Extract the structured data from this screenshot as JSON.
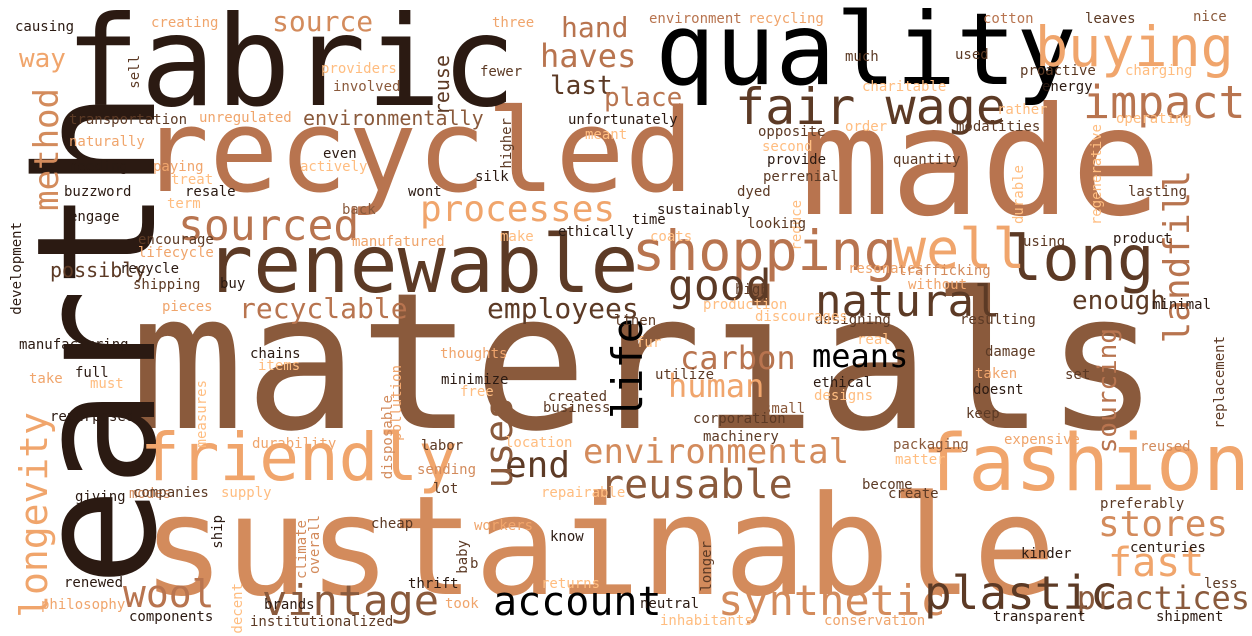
{
  "palette": {
    "darkest": "#2b1a12",
    "dark": "#5c3a25",
    "brown": "#8a5a3c",
    "mid": "#b8744f",
    "tan": "#d38b5c",
    "light": "#f0a56c",
    "pale": "#ffbd80",
    "black": "#000000"
  },
  "words": {
    "materials": "materials",
    "sustainable": "sustainable",
    "made": "made",
    "recycled": "recycled",
    "earth": "earth",
    "fabric": "fabric",
    "quality": "quality",
    "renewable": "renewable",
    "fashion": "fashion",
    "friendly": "friendly",
    "buying": "buying",
    "shopping": "shopping",
    "long": "long",
    "well": "well",
    "fair_wage": "fair wage",
    "impact": "impact",
    "natural": "natural",
    "sourced": "sourced",
    "processes": "processes",
    "method": "method",
    "landfill": "landfill",
    "good": "good",
    "means": "means",
    "haves": "haves",
    "hand": "hand",
    "source": "source",
    "environmental": "environmental",
    "reusable": "reusable",
    "vintage": "vintage",
    "account": "account",
    "synthetic": "synthetic",
    "plastic": "plastic",
    "practices": "practices",
    "fast": "fast",
    "stores": "stores",
    "wool": "wool",
    "end": "end",
    "life": "life",
    "uses": "uses",
    "human": "human",
    "carbon": "carbon",
    "employees": "employees",
    "recyclable": "recyclable",
    "longevity": "longevity",
    "enough": "enough",
    "sourcing": "sourcing",
    "last": "last",
    "place": "place",
    "way": "way",
    "reuse": "reuse",
    "environmentally": "environmentally",
    "possibly": "possibly",
    "causing": "causing",
    "creating": "creating",
    "three": "three",
    "environment": "environment",
    "recycling": "recycling",
    "cotton": "cotton",
    "leaves": "leaves",
    "nice": "nice",
    "sell": "sell",
    "providers": "providers",
    "fewer": "fewer",
    "much": "much",
    "used": "used",
    "proactive": "proactive",
    "charging": "charging",
    "involved": "involved",
    "charitable": "charitable",
    "energy": "energy",
    "transportation": "transportation",
    "unregulated": "unregulated",
    "unfortunately": "unfortunately",
    "rather": "rather",
    "operating": "operating",
    "naturally": "naturally",
    "meant": "meant",
    "order": "order",
    "modalities": "modalities",
    "opposite": "opposite",
    "higher": "higher",
    "second": "second",
    "needing": "needing",
    "paying": "paying",
    "even": "even",
    "provide": "provide",
    "quantity": "quantity",
    "treat": "treat",
    "actively": "actively",
    "perrenial": "perrenial",
    "regenerative": "regenerative",
    "buzzword": "buzzword",
    "resale": "resale",
    "silk": "silk",
    "lasting": "lasting",
    "wont": "wont",
    "dyed": "dyed",
    "term": "term",
    "durable": "durable",
    "engage": "engage",
    "back": "back",
    "sustainably": "sustainably",
    "reduce": "reduce",
    "time": "time",
    "looking": "looking",
    "encourage": "encourage",
    "ethically": "ethically",
    "make": "make",
    "coats": "coats",
    "development": "development",
    "manufatured": "manufatured",
    "using": "using",
    "product": "product",
    "lifecycle": "lifecycle",
    "recycle": "recycle",
    "shipping": "shipping",
    "buy": "buy",
    "resonates": "resonates",
    "trafficking": "trafficking",
    "high": "high",
    "without": "without",
    "minimal": "minimal",
    "pieces": "pieces",
    "production": "production",
    "linen": "linen",
    "designing": "designing",
    "discourages": "discourages",
    "resulting": "resulting",
    "manufacturing": "manufacturing",
    "real": "real",
    "fur": "fur",
    "replacement": "replacement",
    "full": "full",
    "chains": "chains",
    "thoughts": "thoughts",
    "damage": "damage",
    "items": "items",
    "must": "must",
    "take": "take",
    "minimize": "minimize",
    "utilize": "utilize",
    "ethical": "ethical",
    "taken": "taken",
    "set": "set",
    "repurposed": "repurposed",
    "free": "free",
    "pollution": "pollution",
    "measures": "measures",
    "disposable": "disposable",
    "created": "created",
    "designs": "designs",
    "doesnt": "doesnt",
    "business": "business",
    "small": "small",
    "corporation": "corporation",
    "keep": "keep",
    "durability": "durability",
    "labor": "labor",
    "location": "location",
    "machinery": "machinery",
    "packaging": "packaging",
    "expensive": "expensive",
    "reused": "reused",
    "sending": "sending",
    "matter": "matter",
    "giving": "giving",
    "modes": "modes",
    "companies": "companies",
    "supply": "supply",
    "lot": "lot",
    "repairable": "repairable",
    "become": "become",
    "create": "create",
    "ship": "ship",
    "climate": "climate",
    "overall": "overall",
    "workers": "workers",
    "cheap": "cheap",
    "know": "know",
    "preferably": "preferably",
    "baby": "baby",
    "b": "b",
    "longer": "longer",
    "kinder": "kinder",
    "centuries": "centuries",
    "renewed": "renewed",
    "thrift": "thrift",
    "returns": "returns",
    "less": "less",
    "philosophy": "philosophy",
    "decent": "decent",
    "brands": "brands",
    "took": "took",
    "neutral": "neutral",
    "transparent": "transparent",
    "shipment": "shipment",
    "components": "components",
    "institutionalized": "institutionalized",
    "inhabitants": "inhabitants",
    "conservation": "conservation"
  }
}
